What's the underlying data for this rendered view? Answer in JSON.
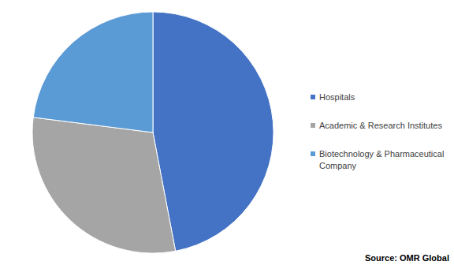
{
  "chart_data": {
    "type": "pie",
    "categories": [
      "Hospitals",
      "Academic & Research Institutes",
      "Biotechnology & Pharmaceutical Company"
    ],
    "values": [
      47,
      30,
      23
    ],
    "colors": [
      "#4472c4",
      "#a5a5a5",
      "#5b9bd5"
    ],
    "legend": "right",
    "source": "Source: OMR Global"
  }
}
